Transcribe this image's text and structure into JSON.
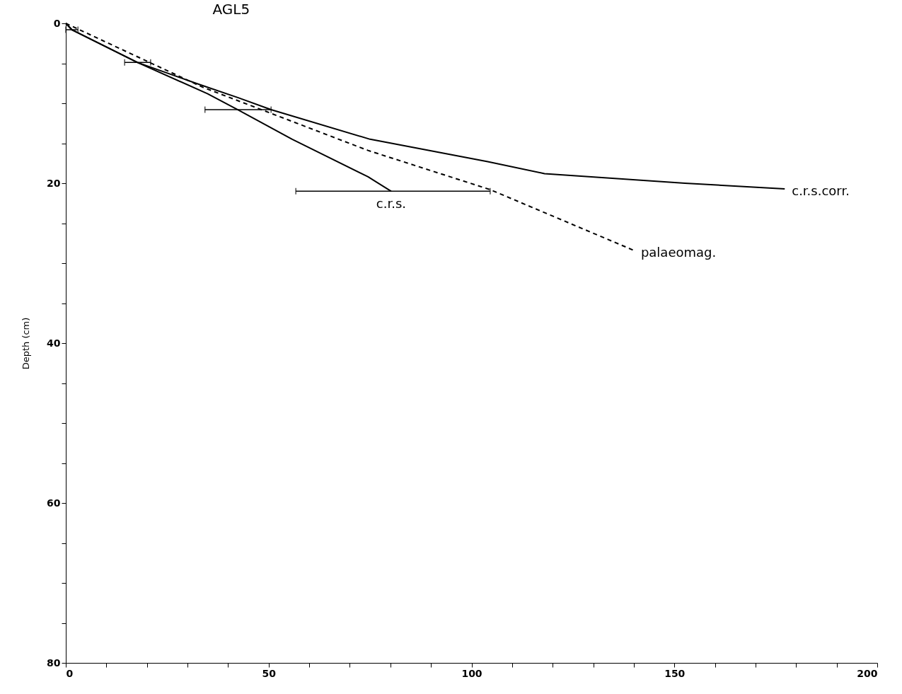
{
  "chart_data": {
    "type": "line",
    "title": "AGL5",
    "ylabel": "Depth (cm)",
    "series": [
      {
        "name": "c.r.s.",
        "color": "#000000",
        "x": [
          0,
          1.5,
          17.7,
          34.9,
          42.4,
          55.8,
          74.5,
          80.2
        ],
        "values": [
          0,
          0.8,
          4.9,
          8.8,
          10.8,
          14.5,
          19.2,
          21.0
        ],
        "xerrors": [
          null,
          [
            0,
            3
          ],
          [
            14.5,
            20.9
          ],
          null,
          [
            34.3,
            50.6
          ],
          null,
          null,
          [
            56.7,
            104.6
          ]
        ]
      },
      {
        "name": "c.r.s.corr.",
        "color": "#000000",
        "x": [
          0,
          1.5,
          17.7,
          32.1,
          42.5,
          50.6,
          75,
          104,
          118,
          152.6,
          177.2
        ],
        "values": [
          0,
          0.8,
          4.9,
          7.5,
          9.3,
          10.8,
          14.5,
          17.3,
          18.8,
          20.0,
          20.7
        ]
      },
      {
        "name": "palaeomag.",
        "color": "#000000",
        "line_style": "dashed",
        "x": [
          0,
          33.8,
          74.5,
          104.6,
          140
        ],
        "values": [
          0,
          8.0,
          15.9,
          20.8,
          28.4
        ]
      }
    ],
    "xlim": [
      0,
      200
    ],
    "xticks": [
      0,
      {
        "value": 10,
        "label": null
      },
      {
        "value": 20,
        "label": null
      },
      {
        "value": 30,
        "label": null
      },
      {
        "value": 40,
        "label": null
      },
      50,
      {
        "value": 60,
        "label": null
      },
      {
        "value": 70,
        "label": null
      },
      {
        "value": 80,
        "label": null
      },
      {
        "value": 90,
        "label": null
      },
      100,
      {
        "value": 110,
        "label": null
      },
      {
        "value": 120,
        "label": null
      },
      {
        "value": 130,
        "label": null
      },
      {
        "value": 140,
        "label": null
      },
      150,
      {
        "value": 160,
        "label": null
      },
      {
        "value": 170,
        "label": null
      },
      {
        "value": 180,
        "label": null
      },
      {
        "value": 190,
        "label": null
      },
      200
    ],
    "ylim": [
      80,
      0
    ],
    "yticks": [
      0,
      {
        "value": 5,
        "label": null
      },
      {
        "value": 10,
        "label": null
      },
      {
        "value": 15,
        "label": null
      },
      20,
      {
        "value": 25,
        "label": null
      },
      {
        "value": 30,
        "label": null
      },
      {
        "value": 35,
        "label": null
      },
      40,
      {
        "value": 45,
        "label": null
      },
      {
        "value": 50,
        "label": null
      },
      {
        "value": 55,
        "label": null
      },
      60,
      {
        "value": 65,
        "label": null
      },
      {
        "value": 70,
        "label": null
      },
      {
        "value": 75,
        "label": null
      },
      80
    ],
    "grid": false,
    "marker": "none",
    "line_style": "solid"
  }
}
